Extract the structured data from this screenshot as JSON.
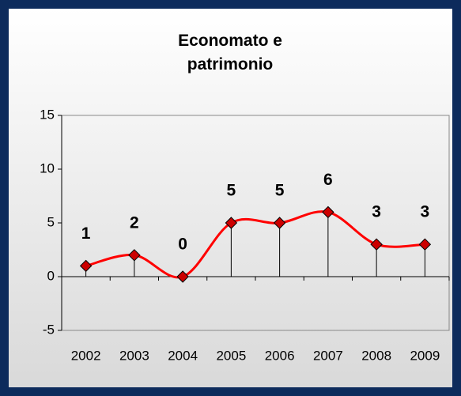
{
  "chart_data": {
    "type": "line",
    "title": "Economato e patrimonio",
    "categories": [
      "2002",
      "2003",
      "2004",
      "2005",
      "2006",
      "2007",
      "2008",
      "2009"
    ],
    "values": [
      1,
      2,
      0,
      5,
      5,
      6,
      3,
      3
    ],
    "color": "#ff0000",
    "marker_color": "#cc0000",
    "ylim": [
      -5,
      15
    ],
    "yticks": [
      -5,
      0,
      5,
      10,
      15
    ],
    "grid": false
  }
}
